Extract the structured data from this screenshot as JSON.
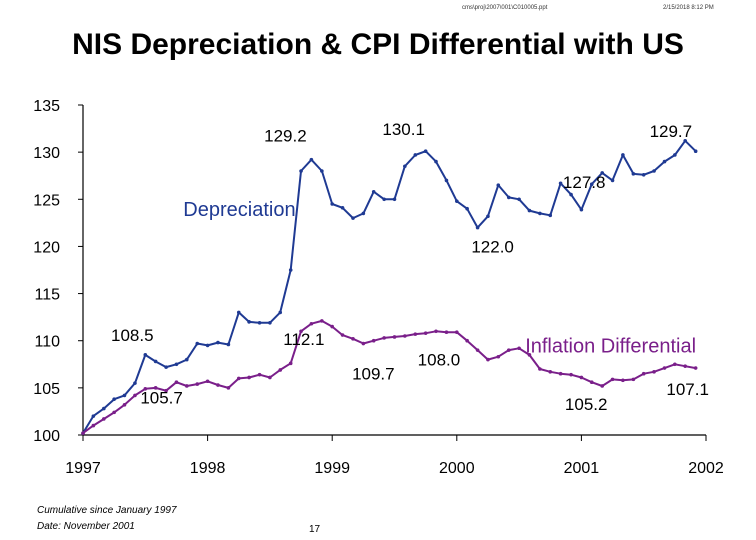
{
  "header": {
    "path": "cms\\proj\\2007\\001\\C010005.ppt",
    "date": "2/15/2018 8:12 PM"
  },
  "chart_data": {
    "type": "line",
    "title": "NIS Depreciation & CPI Differential with US",
    "xlabel": "",
    "ylabel": "",
    "xlim": [
      1997,
      2002
    ],
    "ylim": [
      100,
      135
    ],
    "x_ticks": [
      "1997",
      "1998",
      "1999",
      "2000",
      "2001",
      "2002"
    ],
    "y_ticks": [
      "100",
      "105",
      "110",
      "115",
      "120",
      "125",
      "130",
      "135"
    ],
    "grid": false,
    "series": [
      {
        "name": "Depreciation",
        "color": "#1f3a93",
        "x": [
          1997.0,
          1997.083,
          1997.167,
          1997.25,
          1997.333,
          1997.417,
          1997.5,
          1997.583,
          1997.667,
          1997.75,
          1997.833,
          1997.917,
          1998.0,
          1998.083,
          1998.167,
          1998.25,
          1998.333,
          1998.417,
          1998.5,
          1998.583,
          1998.667,
          1998.75,
          1998.833,
          1998.917,
          1999.0,
          1999.083,
          1999.167,
          1999.25,
          1999.333,
          1999.417,
          1999.5,
          1999.583,
          1999.667,
          1999.75,
          1999.833,
          1999.917,
          2000.0,
          2000.083,
          2000.167,
          2000.25,
          2000.333,
          2000.417,
          2000.5,
          2000.583,
          2000.667,
          2000.75,
          2000.833,
          2000.917,
          2001.0,
          2001.083,
          2001.167,
          2001.25,
          2001.333,
          2001.417,
          2001.5,
          2001.583,
          2001.667,
          2001.75,
          2001.833,
          2001.917
        ],
        "y": [
          100.2,
          102.0,
          102.8,
          103.8,
          104.2,
          105.5,
          108.5,
          107.8,
          107.2,
          107.5,
          108.0,
          109.7,
          109.5,
          109.8,
          109.6,
          113.0,
          112.0,
          111.9,
          111.9,
          113.0,
          117.5,
          128.0,
          129.2,
          128.0,
          124.5,
          124.1,
          123.0,
          123.5,
          125.8,
          125.0,
          125.0,
          128.5,
          129.7,
          130.1,
          129.0,
          127.0,
          124.8,
          124.0,
          122.0,
          123.2,
          126.5,
          125.2,
          125.0,
          123.8,
          123.5,
          123.3,
          126.7,
          125.5,
          123.9,
          126.6,
          127.8,
          127.0,
          129.7,
          127.7,
          127.6,
          128.0,
          129.0,
          129.7,
          131.2,
          130.1
        ]
      },
      {
        "name": "Inflation Differential",
        "color": "#7a1f8a",
        "x": [
          1997.0,
          1997.083,
          1997.167,
          1997.25,
          1997.333,
          1997.417,
          1997.5,
          1997.583,
          1997.667,
          1997.75,
          1997.833,
          1997.917,
          1998.0,
          1998.083,
          1998.167,
          1998.25,
          1998.333,
          1998.417,
          1998.5,
          1998.583,
          1998.667,
          1998.75,
          1998.833,
          1998.917,
          1999.0,
          1999.083,
          1999.167,
          1999.25,
          1999.333,
          1999.417,
          1999.5,
          1999.583,
          1999.667,
          1999.75,
          1999.833,
          1999.917,
          2000.0,
          2000.083,
          2000.167,
          2000.25,
          2000.333,
          2000.417,
          2000.5,
          2000.583,
          2000.667,
          2000.75,
          2000.833,
          2000.917,
          2001.0,
          2001.083,
          2001.167,
          2001.25,
          2001.333,
          2001.417,
          2001.5,
          2001.583,
          2001.667,
          2001.75,
          2001.833,
          2001.917
        ],
        "y": [
          100.2,
          101.0,
          101.7,
          102.4,
          103.2,
          104.2,
          104.9,
          105.0,
          104.7,
          105.6,
          105.2,
          105.4,
          105.7,
          105.3,
          105.0,
          106.0,
          106.1,
          106.4,
          106.1,
          106.9,
          107.6,
          111.0,
          111.8,
          112.1,
          111.5,
          110.6,
          110.2,
          109.7,
          110.0,
          110.3,
          110.4,
          110.5,
          110.7,
          110.8,
          111.0,
          110.9,
          110.9,
          110.0,
          109.0,
          108.0,
          108.3,
          109.0,
          109.2,
          108.5,
          107.0,
          106.7,
          106.5,
          106.4,
          106.1,
          105.6,
          105.2,
          105.9,
          105.8,
          105.9,
          106.5,
          106.7,
          107.1,
          107.5,
          107.3,
          107.1
        ]
      }
    ],
    "annotations": [
      {
        "text": "129.2",
        "x": 1998.833,
        "y": 129.2
      },
      {
        "text": "130.1",
        "x": 1999.75,
        "y": 130.1
      },
      {
        "text": "127.8",
        "x": 2001.167,
        "y": 127.8
      },
      {
        "text": "129.7",
        "x": 2001.75,
        "y": 129.7
      },
      {
        "text": "122.0",
        "x": 2000.167,
        "y": 122.0
      },
      {
        "text": "108.5",
        "x": 1997.5,
        "y": 108.5
      },
      {
        "text": "112.1",
        "x": 1998.917,
        "y": 112.1
      },
      {
        "text": "109.7",
        "x": 1999.25,
        "y": 109.7
      },
      {
        "text": "105.7",
        "x": 1998.0,
        "y": 105.7
      },
      {
        "text": "108.0",
        "x": 2000.25,
        "y": 108.0
      },
      {
        "text": "105.2",
        "x": 2001.167,
        "y": 105.2
      },
      {
        "text": "107.1",
        "x": 2001.917,
        "y": 107.1
      }
    ],
    "series_labels": [
      "Depreciation",
      "Inflation Differential"
    ]
  },
  "footer": {
    "note1": "Cumulative since January 1997",
    "note2": "Date: November 2001",
    "page": "17"
  }
}
